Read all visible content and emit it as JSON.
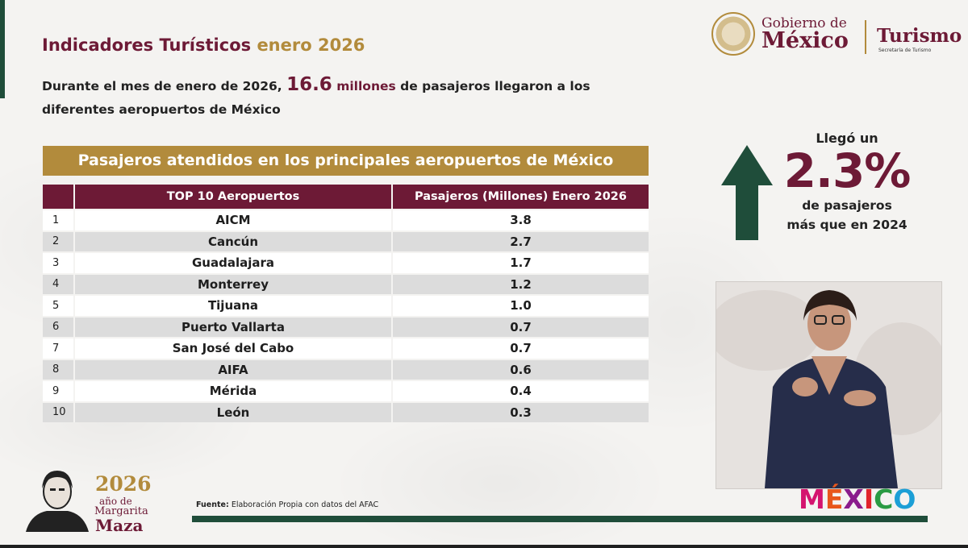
{
  "header": {
    "title_main": "Indicadores Turísticos",
    "title_period": "enero 2026",
    "subtitle_before": "Durante el mes de enero de 2026,",
    "subtitle_value": "16.6",
    "subtitle_unit": "millones",
    "subtitle_after": "de pasajeros llegaron a los diferentes aeropuertos de México"
  },
  "logos": {
    "gobierno_line1": "Gobierno de",
    "gobierno_line2": "México",
    "turismo": "Turismo",
    "turismo_sub": "Secretaría de Turismo",
    "mexico_brand": [
      "M",
      "É",
      "X",
      "I",
      "C",
      "O"
    ],
    "mexico_brand_colors": [
      "#d4146f",
      "#e8571c",
      "#8a1c8c",
      "#e1242b",
      "#2a9b43",
      "#1c9fd6"
    ]
  },
  "table": {
    "banner": "Pasajeros atendidos en los principales aeropuertos de México",
    "headers": [
      "",
      "TOP 10 Aeropuertos",
      "Pasajeros (Millones) Enero 2026"
    ],
    "rows": [
      {
        "rank": "1",
        "airport": "AICM",
        "passengers": "3.8"
      },
      {
        "rank": "2",
        "airport": "Cancún",
        "passengers": "2.7"
      },
      {
        "rank": "3",
        "airport": "Guadalajara",
        "passengers": "1.7"
      },
      {
        "rank": "4",
        "airport": "Monterrey",
        "passengers": "1.2"
      },
      {
        "rank": "5",
        "airport": "Tijuana",
        "passengers": "1.0"
      },
      {
        "rank": "6",
        "airport": "Puerto Vallarta",
        "passengers": "0.7"
      },
      {
        "rank": "7",
        "airport": "San José del Cabo",
        "passengers": "0.7"
      },
      {
        "rank": "8",
        "airport": "AIFA",
        "passengers": "0.6"
      },
      {
        "rank": "9",
        "airport": "Mérida",
        "passengers": "0.4"
      },
      {
        "rank": "10",
        "airport": "León",
        "passengers": "0.3"
      }
    ]
  },
  "growth": {
    "line1": "Llegó un",
    "percent": "2.3%",
    "line2": "de pasajeros",
    "line3": "más que en 2024"
  },
  "footer": {
    "source_label": "Fuente:",
    "source_text": "Elaboración Propia con datos del AFAC",
    "maza_year": "2026",
    "maza_line1": "año de",
    "maza_line2": "Margarita",
    "maza_line3": "Maza"
  },
  "colors": {
    "maroon": "#6d1a36",
    "gold": "#b28b3c",
    "green": "#1f4d3a"
  }
}
